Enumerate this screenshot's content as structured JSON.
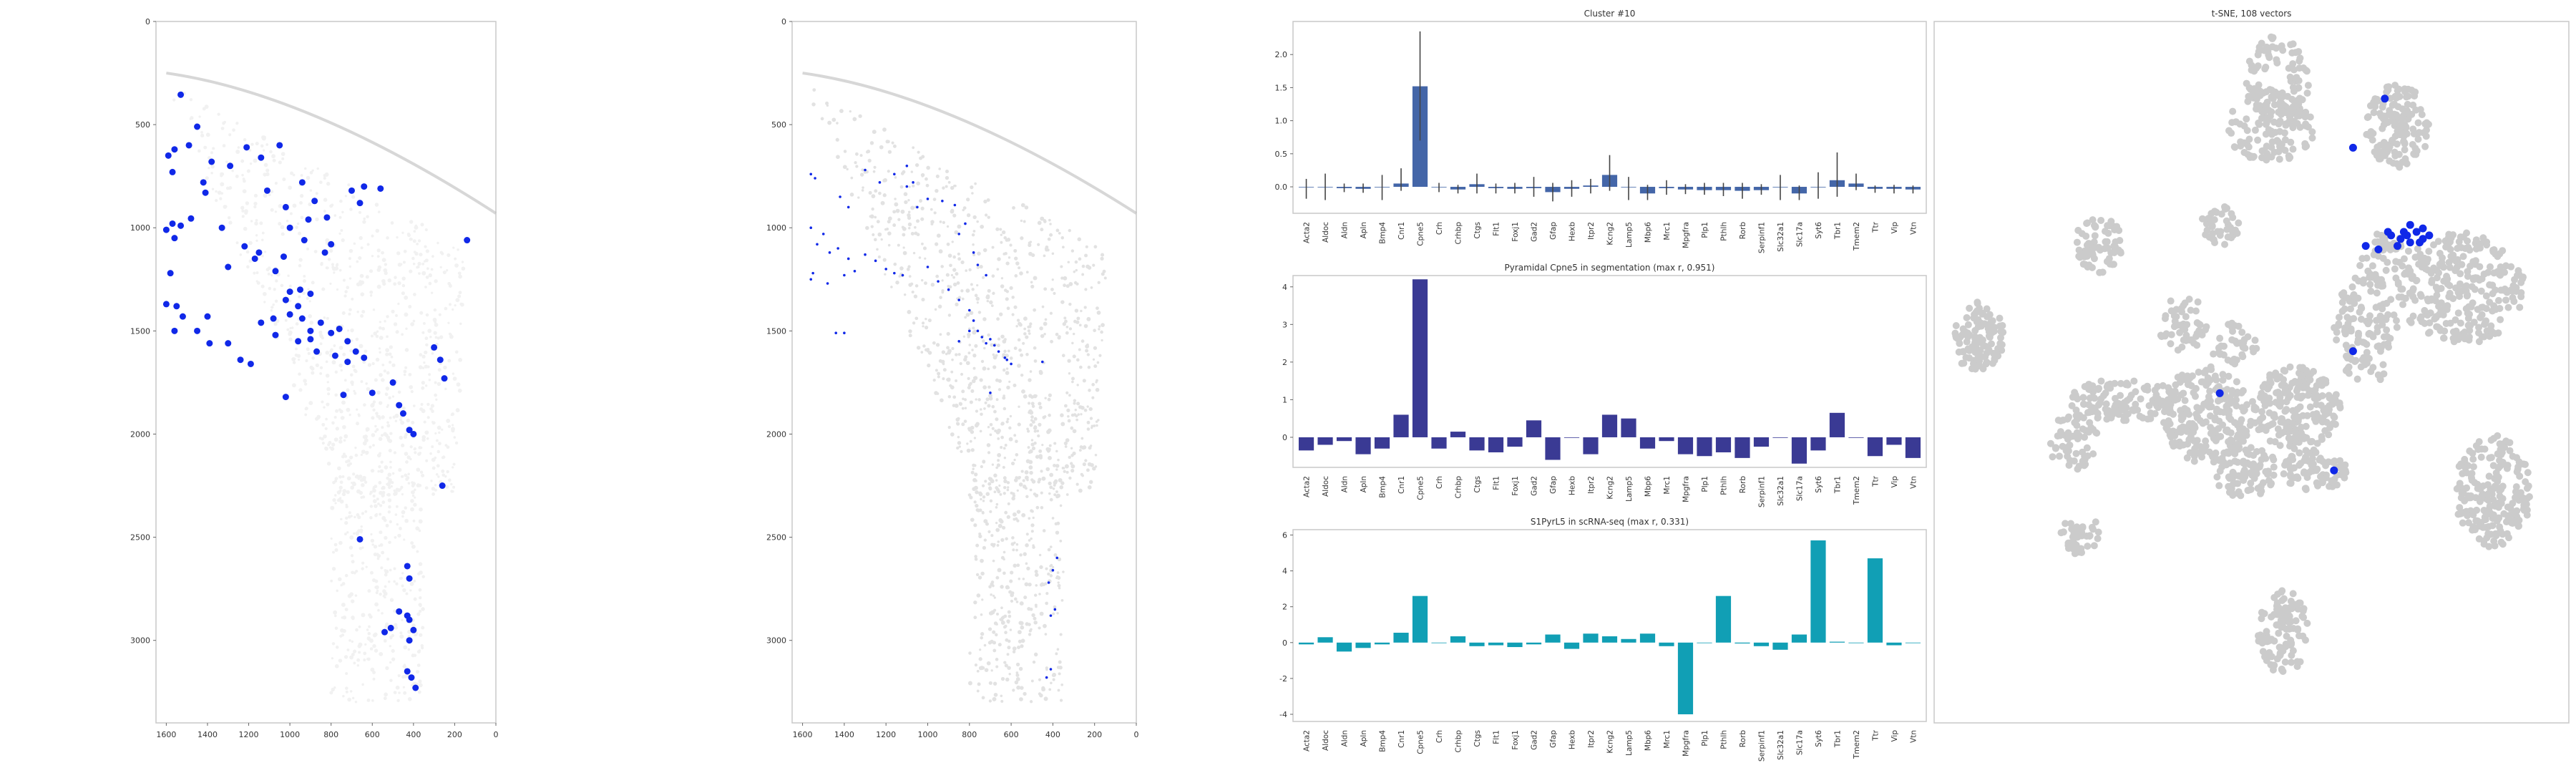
{
  "colors": {
    "frame": "#c8c8c8",
    "tissue": "#d9d9d9",
    "dot": "#1028e8",
    "bar1": "#4466a8",
    "bar2": "#3a3a94",
    "bar3": "#119fb5",
    "tsne": "#cbcbcb",
    "errbar": "#444444"
  },
  "genes": [
    "Acta2",
    "Aldoc",
    "Aldn",
    "Apln",
    "Bmp4",
    "Cnr1",
    "Cpne5",
    "Crh",
    "Crhbp",
    "Ctgs",
    "Flt1",
    "Foxj1",
    "Gad2",
    "Gfap",
    "Hexb",
    "Itpr2",
    "Kcng2",
    "Lamp5",
    "Mbp6",
    "Mrc1",
    "Mpgfra",
    "Plp1",
    "Pthlh",
    "Rorb",
    "Serpinf1",
    "Slc32a1",
    "Slc17a",
    "Syt6",
    "Tbr1",
    "Tmem2",
    "Ttr",
    "Vip",
    "Vtn"
  ],
  "chart_data": [
    {
      "type": "scatter",
      "title": "",
      "xlim": [
        1650,
        0
      ],
      "ylim": [
        0,
        3400
      ],
      "xticks": [
        1600,
        1400,
        1200,
        1000,
        800,
        600,
        400,
        200,
        0
      ],
      "yticks": [
        0,
        500,
        1000,
        1500,
        2000,
        2500,
        3000
      ],
      "points": [
        [
          1530,
          355
        ],
        [
          1490,
          600
        ],
        [
          1560,
          620
        ],
        [
          1590,
          650
        ],
        [
          1570,
          730
        ],
        [
          1450,
          510
        ],
        [
          1380,
          680
        ],
        [
          1410,
          830
        ],
        [
          1480,
          955
        ],
        [
          1420,
          780
        ],
        [
          1290,
          700
        ],
        [
          1210,
          610
        ],
        [
          1140,
          660
        ],
        [
          1050,
          600
        ],
        [
          1110,
          820
        ],
        [
          1020,
          900
        ],
        [
          940,
          780
        ],
        [
          910,
          960
        ],
        [
          880,
          870
        ],
        [
          820,
          950
        ],
        [
          700,
          820
        ],
        [
          640,
          800
        ],
        [
          660,
          880
        ],
        [
          560,
          810
        ],
        [
          1570,
          980
        ],
        [
          1530,
          990
        ],
        [
          1600,
          1010
        ],
        [
          1560,
          1050
        ],
        [
          1330,
          1000
        ],
        [
          1220,
          1090
        ],
        [
          1150,
          1120
        ],
        [
          1170,
          1150
        ],
        [
          1300,
          1190
        ],
        [
          1070,
          1210
        ],
        [
          1000,
          1000
        ],
        [
          930,
          1060
        ],
        [
          1030,
          1140
        ],
        [
          830,
          1120
        ],
        [
          800,
          1080
        ],
        [
          1580,
          1220
        ],
        [
          1600,
          1370
        ],
        [
          1550,
          1380
        ],
        [
          1520,
          1430
        ],
        [
          1400,
          1430
        ],
        [
          1450,
          1500
        ],
        [
          1560,
          1500
        ],
        [
          1390,
          1560
        ],
        [
          1300,
          1560
        ],
        [
          1240,
          1640
        ],
        [
          1190,
          1660
        ],
        [
          1020,
          1350
        ],
        [
          1000,
          1310
        ],
        [
          950,
          1300
        ],
        [
          900,
          1320
        ],
        [
          960,
          1380
        ],
        [
          1000,
          1420
        ],
        [
          1080,
          1440
        ],
        [
          940,
          1440
        ],
        [
          900,
          1500
        ],
        [
          850,
          1460
        ],
        [
          800,
          1510
        ],
        [
          760,
          1490
        ],
        [
          720,
          1550
        ],
        [
          680,
          1600
        ],
        [
          640,
          1630
        ],
        [
          870,
          1600
        ],
        [
          780,
          1620
        ],
        [
          720,
          1650
        ],
        [
          900,
          1540
        ],
        [
          960,
          1550
        ],
        [
          1070,
          1520
        ],
        [
          1140,
          1460
        ],
        [
          1020,
          1820
        ],
        [
          740,
          1810
        ],
        [
          600,
          1800
        ],
        [
          500,
          1750
        ],
        [
          470,
          1860
        ],
        [
          450,
          1900
        ],
        [
          420,
          1980
        ],
        [
          400,
          2000
        ],
        [
          300,
          1580
        ],
        [
          270,
          1640
        ],
        [
          250,
          1730
        ],
        [
          660,
          2510
        ],
        [
          430,
          2640
        ],
        [
          420,
          2700
        ],
        [
          470,
          2860
        ],
        [
          420,
          2900
        ],
        [
          430,
          2880
        ],
        [
          400,
          2950
        ],
        [
          420,
          3000
        ],
        [
          510,
          2940
        ],
        [
          540,
          2960
        ],
        [
          430,
          3150
        ],
        [
          410,
          3180
        ],
        [
          390,
          3230
        ],
        [
          260,
          2250
        ],
        [
          140,
          1060
        ]
      ]
    },
    {
      "type": "scatter",
      "title": "",
      "xlim": [
        1650,
        0
      ],
      "ylim": [
        0,
        3400
      ],
      "xticks": [
        1600,
        1400,
        1200,
        1000,
        800,
        600,
        400,
        200,
        0
      ],
      "yticks": [
        0,
        500,
        1000,
        1500,
        2000,
        2500,
        3000
      ],
      "points": [
        [
          1560,
          740
        ],
        [
          1540,
          760
        ],
        [
          1420,
          850
        ],
        [
          1380,
          900
        ],
        [
          1300,
          720
        ],
        [
          1230,
          780
        ],
        [
          1160,
          740
        ],
        [
          1100,
          700
        ],
        [
          1070,
          780
        ],
        [
          1050,
          900
        ],
        [
          1560,
          1000
        ],
        [
          1500,
          1030
        ],
        [
          1530,
          1080
        ],
        [
          1470,
          1120
        ],
        [
          1430,
          1100
        ],
        [
          1380,
          1150
        ],
        [
          1300,
          1130
        ],
        [
          1250,
          1160
        ],
        [
          1200,
          1200
        ],
        [
          1160,
          1220
        ],
        [
          1120,
          1230
        ],
        [
          1550,
          1220
        ],
        [
          1560,
          1250
        ],
        [
          1480,
          1270
        ],
        [
          1400,
          1230
        ],
        [
          1350,
          1210
        ],
        [
          1100,
          800
        ],
        [
          1000,
          860
        ],
        [
          930,
          870
        ],
        [
          870,
          890
        ],
        [
          820,
          980
        ],
        [
          850,
          1030
        ],
        [
          780,
          1120
        ],
        [
          760,
          1180
        ],
        [
          720,
          1230
        ],
        [
          1000,
          1190
        ],
        [
          950,
          1260
        ],
        [
          900,
          1300
        ],
        [
          850,
          1350
        ],
        [
          800,
          1400
        ],
        [
          780,
          1450
        ],
        [
          760,
          1500
        ],
        [
          740,
          1530
        ],
        [
          720,
          1560
        ],
        [
          700,
          1540
        ],
        [
          680,
          1570
        ],
        [
          660,
          1600
        ],
        [
          630,
          1630
        ],
        [
          600,
          1660
        ],
        [
          800,
          1500
        ],
        [
          850,
          1550
        ],
        [
          700,
          1800
        ],
        [
          1440,
          1510
        ],
        [
          1400,
          1510
        ],
        [
          380,
          2600
        ],
        [
          400,
          2660
        ],
        [
          420,
          2720
        ],
        [
          390,
          2850
        ],
        [
          410,
          2880
        ],
        [
          410,
          3140
        ],
        [
          430,
          3180
        ],
        [
          450,
          1650
        ],
        [
          620,
          1640
        ]
      ]
    },
    {
      "type": "bar",
      "title": "Cluster #10",
      "ylim": [
        -0.4,
        2.5
      ],
      "yticks": [
        0.0,
        0.5,
        1.0,
        1.5,
        2.0
      ],
      "values": [
        0.0,
        0.0,
        -0.02,
        -0.03,
        0.0,
        0.05,
        1.52,
        0.0,
        -0.04,
        0.04,
        -0.02,
        -0.03,
        -0.02,
        -0.08,
        -0.03,
        0.02,
        0.18,
        0.0,
        -0.1,
        -0.02,
        -0.04,
        -0.05,
        -0.05,
        -0.06,
        -0.05,
        0.0,
        -0.1,
        0.0,
        0.1,
        0.05,
        -0.03,
        -0.03,
        -0.04
      ],
      "err_low": [
        -0.18,
        -0.2,
        -0.08,
        -0.09,
        -0.2,
        -0.06,
        0.7,
        -0.08,
        -0.1,
        -0.1,
        -0.1,
        -0.1,
        -0.15,
        -0.22,
        -0.15,
        -0.1,
        -0.06,
        -0.2,
        -0.2,
        -0.12,
        -0.11,
        -0.12,
        -0.14,
        -0.18,
        -0.12,
        -0.2,
        -0.2,
        -0.18,
        -0.15,
        -0.05,
        -0.09,
        -0.1,
        -0.1
      ],
      "err_high": [
        0.12,
        0.2,
        0.05,
        0.05,
        0.18,
        0.28,
        2.35,
        0.06,
        0.03,
        0.2,
        0.05,
        0.06,
        0.15,
        0.06,
        0.1,
        0.12,
        0.48,
        0.15,
        0.03,
        0.1,
        0.04,
        0.06,
        0.06,
        0.06,
        0.04,
        0.18,
        0.02,
        0.22,
        0.52,
        0.2,
        0.02,
        0.03,
        0.02
      ]
    },
    {
      "type": "bar",
      "title": "Pyramidal Cpne5 in segmentation (max r, 0.951)",
      "ylim": [
        -0.8,
        4.3
      ],
      "yticks": [
        0,
        1,
        2,
        3,
        4
      ],
      "values": [
        -0.35,
        -0.2,
        -0.1,
        -0.45,
        -0.3,
        0.6,
        4.2,
        -0.3,
        0.15,
        -0.35,
        -0.4,
        -0.25,
        0.45,
        -0.6,
        0.0,
        -0.45,
        0.6,
        0.5,
        -0.3,
        -0.1,
        -0.45,
        -0.5,
        -0.4,
        -0.55,
        -0.25,
        0.0,
        -0.7,
        -0.35,
        0.65,
        0.0,
        -0.5,
        -0.2,
        -0.55
      ]
    },
    {
      "type": "bar",
      "title": "S1PyrL5 in scRNA-seq (max r, 0.331)",
      "ylim": [
        -4.4,
        6.3
      ],
      "yticks": [
        -4,
        -2,
        0,
        2,
        4,
        6
      ],
      "values": [
        -0.1,
        0.3,
        -0.5,
        -0.3,
        -0.1,
        0.55,
        2.6,
        0.0,
        0.35,
        -0.2,
        -0.15,
        -0.25,
        -0.1,
        0.45,
        -0.35,
        0.5,
        0.35,
        0.2,
        0.5,
        -0.2,
        -4.0,
        0.0,
        2.6,
        -0.05,
        -0.2,
        -0.4,
        0.45,
        5.7,
        0.05,
        0.0,
        4.7,
        -0.15,
        0.0
      ]
    },
    {
      "type": "scatter",
      "title": "t-SNE, 108 vectors",
      "clusters": [
        {
          "cx": 54,
          "cy": 9,
          "rx": 5,
          "ry": 7,
          "n": 120
        },
        {
          "cx": 53,
          "cy": 15,
          "rx": 7,
          "ry": 5,
          "n": 100
        },
        {
          "cx": 73,
          "cy": 15,
          "rx": 5,
          "ry": 6,
          "n": 150
        },
        {
          "cx": 45,
          "cy": 29,
          "rx": 3,
          "ry": 3,
          "n": 40
        },
        {
          "cx": 26,
          "cy": 32,
          "rx": 4,
          "ry": 4,
          "n": 70
        },
        {
          "cx": 83,
          "cy": 38,
          "rx": 10,
          "ry": 8,
          "n": 280
        },
        {
          "cx": 71,
          "cy": 34,
          "rx": 4,
          "ry": 4,
          "n": 60
        },
        {
          "cx": 68,
          "cy": 44,
          "rx": 5,
          "ry": 8,
          "n": 120
        },
        {
          "cx": 7,
          "cy": 45,
          "rx": 4,
          "ry": 5,
          "n": 110
        },
        {
          "cx": 39,
          "cy": 43,
          "rx": 4,
          "ry": 4,
          "n": 50
        },
        {
          "cx": 47,
          "cy": 46,
          "rx": 4,
          "ry": 3,
          "n": 40
        },
        {
          "cx": 30,
          "cy": 54,
          "rx": 9,
          "ry": 3,
          "n": 120
        },
        {
          "cx": 43,
          "cy": 56,
          "rx": 7,
          "ry": 7,
          "n": 220
        },
        {
          "cx": 57,
          "cy": 55,
          "rx": 7,
          "ry": 6,
          "n": 220
        },
        {
          "cx": 22,
          "cy": 60,
          "rx": 4,
          "ry": 4,
          "n": 60
        },
        {
          "cx": 49,
          "cy": 64,
          "rx": 5,
          "ry": 4,
          "n": 90
        },
        {
          "cx": 60,
          "cy": 64,
          "rx": 5,
          "ry": 3,
          "n": 80
        },
        {
          "cx": 88,
          "cy": 67,
          "rx": 6,
          "ry": 8,
          "n": 210
        },
        {
          "cx": 23,
          "cy": 73,
          "rx": 3,
          "ry": 3,
          "n": 40
        },
        {
          "cx": 55,
          "cy": 87,
          "rx": 4,
          "ry": 6,
          "n": 110
        }
      ],
      "highlight": [
        [
          71,
          11
        ],
        [
          66,
          18
        ],
        [
          72,
          30.5
        ],
        [
          73.5,
          31
        ],
        [
          74,
          30
        ],
        [
          75,
          31.5
        ],
        [
          76,
          30
        ],
        [
          77,
          31
        ],
        [
          78,
          30.5
        ],
        [
          73,
          32
        ],
        [
          75,
          29
        ],
        [
          77,
          29.5
        ],
        [
          68,
          32
        ],
        [
          70,
          32.5
        ],
        [
          66,
          47
        ],
        [
          45,
          53
        ],
        [
          63,
          64
        ],
        [
          71.5,
          30
        ],
        [
          74.5,
          30.5
        ],
        [
          76.5,
          31.5
        ]
      ]
    }
  ]
}
